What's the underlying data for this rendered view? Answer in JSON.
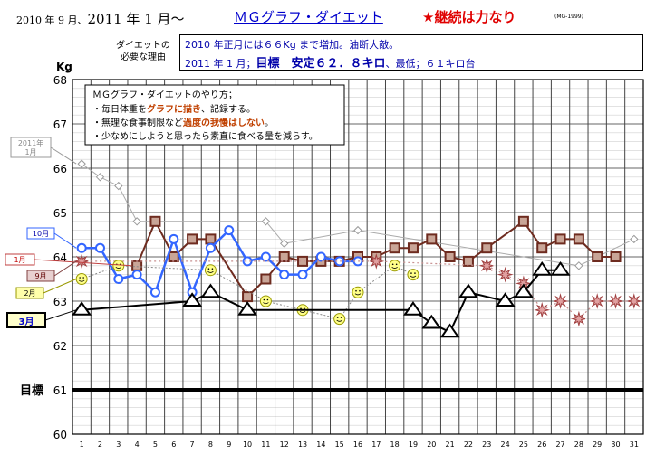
{
  "header": {
    "date_prefix": "2010 年 9 月、",
    "date_main": "2011 年 1 月〜",
    "title": "ＭＧグラフ・ダイエット",
    "slogan": "★継続は力なり",
    "code": "(MG-1999)"
  },
  "reason": {
    "label_line1": "ダイエットの",
    "label_line2": "必要な理由",
    "line1": "2010 年正月には６６Kg まで増加。油断大敵。",
    "line2_prefix": "2011 年 1 月；",
    "line2_goal": "目標　安定６２．８キロ",
    "line2_suffix": "、最低；６１キロ台"
  },
  "note": {
    "title": "ＭＧグラフ・ダイエットのやり方；",
    "l1a": "・毎日体重を",
    "l1b": "グラフに描き",
    "l1c": "、記録する。",
    "l2a": "・無理な食事制限など",
    "l2b": "過度の我慢はしない",
    "l2c": "。",
    "l3": "・少なめにしようと思ったら素直に食べる量を減らす。"
  },
  "colors": {
    "jan2011": "#6e2b1f",
    "jan2010": "#aaaaaa",
    "oct": "#3366ff",
    "sep": "#c89090",
    "feb": "#dddd55",
    "mar": "#000000",
    "goal": "#000000"
  },
  "chart_data": {
    "type": "line",
    "ylabel": "Kg",
    "ylim": [
      60,
      68
    ],
    "yticks": [
      60,
      61,
      62,
      63,
      64,
      65,
      66,
      67,
      68
    ],
    "x": [
      1,
      2,
      3,
      4,
      5,
      6,
      7,
      8,
      9,
      10,
      11,
      12,
      13,
      14,
      15,
      16,
      17,
      18,
      19,
      20,
      21,
      22,
      23,
      24,
      25,
      26,
      27,
      28,
      29,
      30,
      31
    ],
    "goal": {
      "label": "目標",
      "value": 61
    },
    "series": [
      {
        "name": "2011年 1月",
        "marker": "diamond",
        "values": [
          66.1,
          65.8,
          65.6,
          64.8,
          null,
          null,
          null,
          null,
          null,
          null,
          64.8,
          64.3,
          null,
          null,
          null,
          64.6,
          null,
          null,
          null,
          null,
          null,
          null,
          null,
          null,
          null,
          null,
          null,
          63.8,
          64,
          null,
          64.4
        ]
      },
      {
        "name": "1月",
        "marker": "square",
        "values": [
          null,
          null,
          null,
          63.8,
          64.8,
          64,
          64.4,
          64.4,
          null,
          63.1,
          63.5,
          64,
          63.9,
          63.9,
          63.9,
          64,
          64,
          64.2,
          64.2,
          64.4,
          64,
          63.9,
          64.2,
          null,
          64.8,
          64.2,
          64.4,
          64.4,
          64,
          64,
          null
        ]
      },
      {
        "name": "10月",
        "marker": "circle",
        "values": [
          64.2,
          64.2,
          63.5,
          63.6,
          63.2,
          64.4,
          63.2,
          64.2,
          64.6,
          63.9,
          64,
          63.6,
          63.6,
          64,
          63.9,
          63.9,
          null,
          null,
          null,
          null,
          null,
          null,
          null,
          null,
          null,
          null,
          null,
          null,
          null,
          null,
          null
        ]
      },
      {
        "name": "9月",
        "marker": "burst",
        "values": [
          63.9,
          null,
          null,
          null,
          null,
          null,
          null,
          null,
          null,
          null,
          null,
          null,
          null,
          null,
          null,
          null,
          63.9,
          null,
          null,
          null,
          null,
          null,
          63.8,
          63.6,
          63.4,
          62.8,
          63,
          62.6,
          63,
          63,
          63
        ]
      },
      {
        "name": "2月",
        "marker": "smiley",
        "values": [
          63.5,
          null,
          63.8,
          null,
          null,
          null,
          null,
          63.7,
          null,
          null,
          63,
          null,
          62.8,
          null,
          62.6,
          63.2,
          null,
          63.8,
          63.6,
          null,
          null,
          null,
          null,
          null,
          null,
          null,
          null,
          null,
          null,
          null,
          null
        ]
      },
      {
        "name": "3月",
        "marker": "triangle",
        "values": [
          62.8,
          null,
          null,
          null,
          null,
          null,
          63,
          63.2,
          null,
          62.8,
          null,
          null,
          null,
          null,
          null,
          null,
          null,
          null,
          62.8,
          62.5,
          62.3,
          63.2,
          null,
          63,
          63.2,
          63.7,
          63.7,
          null,
          null,
          null,
          null
        ]
      }
    ]
  }
}
